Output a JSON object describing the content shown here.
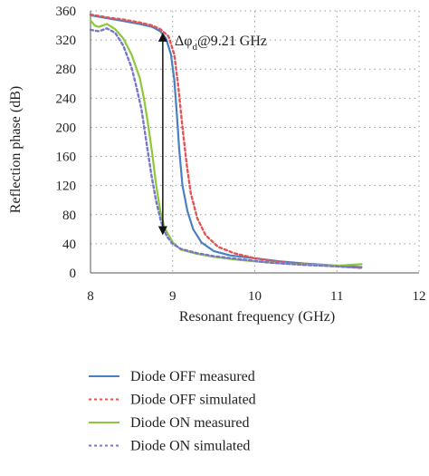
{
  "chart_data": {
    "type": "line",
    "xlabel": "Resonant frequency (GHz)",
    "ylabel": "Reflection phase (dB)",
    "xlim": [
      8,
      12
    ],
    "ylim": [
      0,
      360
    ],
    "xticks": [
      8,
      9,
      10,
      11,
      12
    ],
    "xtick_labels": [
      "8",
      "9",
      "10",
      "11",
      "12"
    ],
    "yticks": [
      0,
      40,
      80,
      120,
      160,
      200,
      240,
      280,
      320,
      360
    ],
    "ytick_labels": [
      "0",
      "40",
      "80",
      "120",
      "160",
      "200",
      "240",
      "280",
      "320",
      "360"
    ],
    "grid": "dotted",
    "legend_position": "bottom",
    "annotation": {
      "text": "Δφd@9.21 GHz",
      "prefix": "Δφ",
      "subscript": "d",
      "suffix": "@9.21 GHz",
      "arrow_x": 8.88,
      "arrow_y": [
        58,
        324
      ]
    },
    "series": [
      {
        "name": "Diode OFF measured",
        "color": "#4a7fc1",
        "dash": "solid",
        "x": [
          8.0,
          8.2,
          8.4,
          8.6,
          8.75,
          8.85,
          8.92,
          8.98,
          9.02,
          9.05,
          9.08,
          9.12,
          9.18,
          9.25,
          9.35,
          9.5,
          9.7,
          10.0,
          10.3,
          10.6,
          11.0,
          11.3
        ],
        "y": [
          354,
          350,
          346,
          342,
          338,
          332,
          322,
          300,
          265,
          220,
          170,
          120,
          85,
          60,
          42,
          30,
          24,
          20,
          16,
          13,
          10,
          8
        ]
      },
      {
        "name": "Diode OFF simulated",
        "color": "#e05555",
        "dash": "dashed",
        "x": [
          8.0,
          8.2,
          8.4,
          8.6,
          8.75,
          8.85,
          8.95,
          9.02,
          9.07,
          9.12,
          9.17,
          9.22,
          9.3,
          9.4,
          9.55,
          9.75,
          10.0,
          10.3,
          10.6,
          11.0,
          11.3
        ],
        "y": [
          355,
          351,
          348,
          344,
          340,
          335,
          325,
          300,
          255,
          200,
          150,
          110,
          75,
          52,
          36,
          27,
          20,
          15,
          12,
          9,
          7
        ]
      },
      {
        "name": "Diode ON measured",
        "color": "#8cc83c",
        "dash": "solid",
        "x": [
          8.0,
          8.05,
          8.1,
          8.2,
          8.3,
          8.4,
          8.5,
          8.6,
          8.65,
          8.7,
          8.75,
          8.8,
          8.85,
          8.9,
          9.0,
          9.1,
          9.3,
          9.5,
          9.8,
          10.1,
          10.5,
          11.0,
          11.3
        ],
        "y": [
          347,
          340,
          338,
          342,
          335,
          322,
          300,
          268,
          240,
          205,
          165,
          120,
          85,
          62,
          42,
          32,
          26,
          22,
          18,
          15,
          12,
          10,
          12
        ]
      },
      {
        "name": "Diode ON simulated",
        "color": "#7777c8",
        "dash": "dashed",
        "x": [
          8.0,
          8.1,
          8.2,
          8.3,
          8.4,
          8.5,
          8.55,
          8.62,
          8.68,
          8.74,
          8.8,
          8.86,
          8.93,
          9.0,
          9.1,
          9.3,
          9.5,
          9.8,
          10.2,
          10.6,
          11.0,
          11.3
        ],
        "y": [
          334,
          332,
          336,
          330,
          312,
          282,
          260,
          225,
          180,
          135,
          98,
          70,
          50,
          40,
          33,
          27,
          23,
          19,
          14,
          11,
          9,
          7
        ]
      }
    ]
  }
}
